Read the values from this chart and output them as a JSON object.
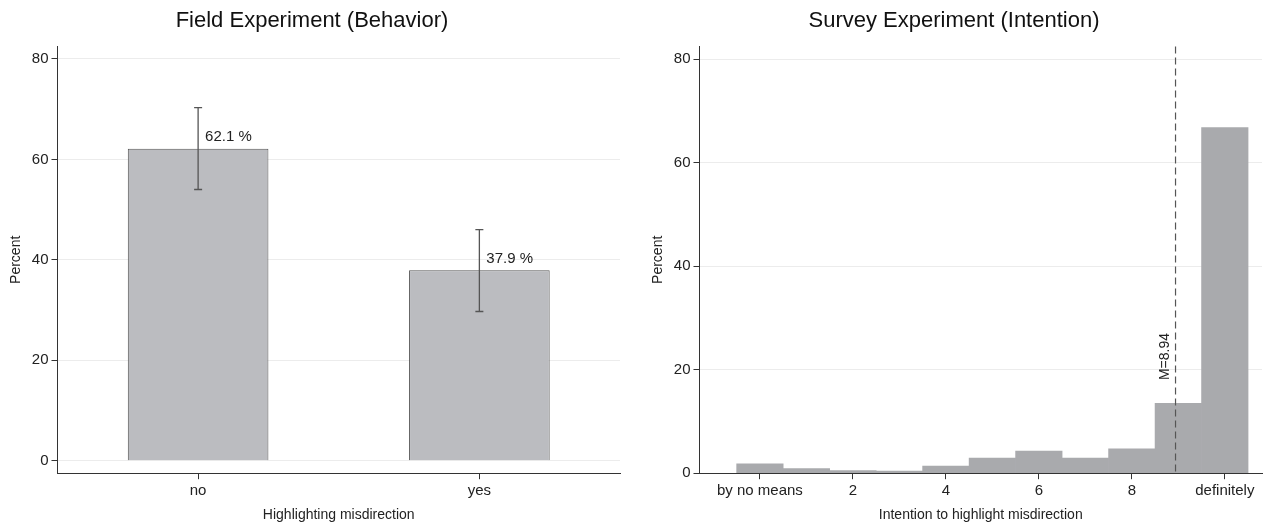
{
  "chart_data": [
    {
      "type": "bar",
      "title": "Field Experiment (Behavior)",
      "xlabel": "Highlighting misdirection",
      "ylabel": "Percent",
      "categories": [
        "no",
        "yes"
      ],
      "values": [
        62.1,
        37.9
      ],
      "color": "#bbbcc0",
      "errors": [
        [
          54.0,
          70.3
        ],
        [
          29.7,
          46.0
        ]
      ],
      "value_labels": [
        "62.1 %",
        "37.9 %"
      ],
      "ylim": [
        -2.5,
        82.5
      ],
      "yticks": [
        0,
        20,
        40,
        60,
        80
      ],
      "grid": "y"
    },
    {
      "type": "histogram",
      "title": "Survey Experiment (Intention)",
      "xlabel": "Intention to highlight misdirection",
      "ylabel": "Percent",
      "bins": [
        -0.5,
        0.5,
        1.5,
        2.5,
        3.5,
        4.5,
        5.5,
        6.5,
        7.5,
        8.5,
        9.5,
        10.5
      ],
      "values": [
        1.8,
        0.9,
        0.5,
        0.4,
        1.4,
        2.9,
        4.3,
        2.9,
        4.7,
        13.5,
        66.8
      ],
      "color": "#a9aaad",
      "xlim": [
        -1.3,
        10.8
      ],
      "xticks": [
        {
          "value": 0,
          "label": "by no means"
        },
        2,
        4,
        6,
        8,
        {
          "value": 10,
          "label": "definitely"
        }
      ],
      "ylim": [
        0,
        82.5
      ],
      "yticks": [
        0,
        20,
        40,
        60,
        80
      ],
      "grid": "y",
      "ref_lines": [
        {
          "axis": "x",
          "value": 8.94,
          "label": "M=8.94",
          "line_style": "dashed",
          "color": "#555555"
        }
      ]
    }
  ]
}
